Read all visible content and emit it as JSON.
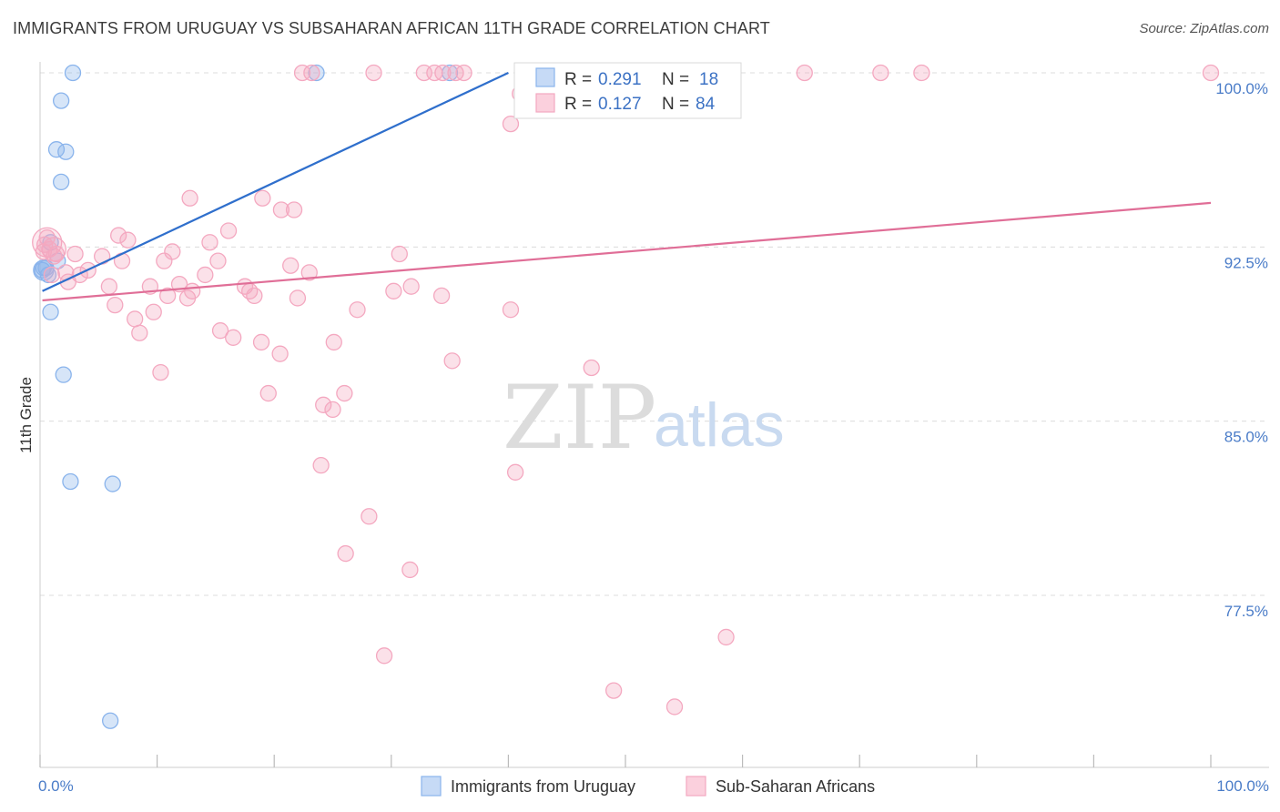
{
  "title": "IMMIGRANTS FROM URUGUAY VS SUBSAHARAN AFRICAN 11TH GRADE CORRELATION CHART",
  "source": "Source: ZipAtlas.com",
  "watermark": {
    "zip": "ZIP",
    "atlas": "atlas"
  },
  "chart_data": {
    "type": "scatter",
    "title": "IMMIGRANTS FROM URUGUAY VS SUBSAHARAN AFRICAN 11TH GRADE CORRELATION CHART",
    "xlabel": "",
    "ylabel": "11th Grade",
    "xlim": [
      0,
      100
    ],
    "ylim": [
      70.8,
      101.2
    ],
    "x_tick_labels": [
      "0.0%",
      "100.0%"
    ],
    "y_ticks": [
      77.5,
      85.0,
      92.5,
      100.0
    ],
    "y_tick_labels": [
      "77.5%",
      "85.0%",
      "92.5%",
      "100.0%"
    ],
    "grid": "horizontal dashed",
    "legend_position": "top-center",
    "series": [
      {
        "name": "Immigrants from Uruguay",
        "color": "#8ab4ec",
        "line_color": "#2f6fcc",
        "R": "0.291",
        "N": "18",
        "trend": [
          [
            0.2,
            90.6
          ],
          [
            40.0,
            100.0
          ]
        ],
        "points": [
          [
            2.8,
            100.0
          ],
          [
            1.8,
            98.8
          ],
          [
            1.4,
            96.7
          ],
          [
            2.2,
            96.6
          ],
          [
            1.8,
            95.3
          ],
          [
            0.9,
            92.7
          ],
          [
            0.3,
            91.6
          ],
          [
            0.7,
            91.3
          ],
          [
            1.5,
            91.9
          ],
          [
            0.9,
            89.7
          ],
          [
            2.0,
            87.0
          ],
          [
            2.6,
            82.4
          ],
          [
            6.2,
            82.3
          ],
          [
            6.0,
            72.1
          ],
          [
            23.6,
            100.0
          ],
          [
            35.0,
            100.0
          ],
          [
            0.5,
            91.6
          ],
          [
            0.2,
            91.5
          ]
        ]
      },
      {
        "name": "Sub-Saharan Africans",
        "color": "#f4a8c0",
        "line_color": "#e06e97",
        "R": "0.127",
        "N": "84",
        "trend": [
          [
            0.2,
            90.2
          ],
          [
            100.0,
            94.4
          ]
        ],
        "points": [
          [
            22.4,
            100.0
          ],
          [
            23.2,
            100.0
          ],
          [
            28.5,
            100.0
          ],
          [
            32.8,
            100.0
          ],
          [
            33.7,
            100.0
          ],
          [
            34.4,
            100.0
          ],
          [
            35.5,
            100.0
          ],
          [
            36.2,
            100.0
          ],
          [
            52.0,
            100.0
          ],
          [
            65.3,
            100.0
          ],
          [
            71.8,
            100.0
          ],
          [
            75.3,
            100.0
          ],
          [
            100.0,
            100.0
          ],
          [
            41.0,
            99.1
          ],
          [
            40.2,
            97.8
          ],
          [
            12.8,
            94.6
          ],
          [
            19.0,
            94.6
          ],
          [
            20.6,
            94.1
          ],
          [
            21.7,
            94.1
          ],
          [
            16.1,
            93.2
          ],
          [
            6.7,
            93.0
          ],
          [
            7.5,
            92.8
          ],
          [
            14.5,
            92.7
          ],
          [
            0.4,
            92.6
          ],
          [
            0.8,
            92.4
          ],
          [
            1.4,
            92.2
          ],
          [
            3.0,
            92.2
          ],
          [
            5.3,
            92.1
          ],
          [
            11.3,
            92.3
          ],
          [
            30.7,
            92.2
          ],
          [
            7.0,
            91.9
          ],
          [
            10.6,
            91.9
          ],
          [
            15.2,
            91.9
          ],
          [
            4.1,
            91.5
          ],
          [
            1.0,
            91.3
          ],
          [
            2.2,
            91.4
          ],
          [
            3.4,
            91.3
          ],
          [
            21.4,
            91.7
          ],
          [
            23.0,
            91.4
          ],
          [
            14.1,
            91.3
          ],
          [
            5.9,
            90.8
          ],
          [
            9.4,
            90.8
          ],
          [
            11.9,
            90.9
          ],
          [
            17.5,
            90.8
          ],
          [
            31.7,
            90.8
          ],
          [
            13.0,
            90.6
          ],
          [
            17.9,
            90.6
          ],
          [
            18.3,
            90.4
          ],
          [
            10.9,
            90.4
          ],
          [
            12.6,
            90.3
          ],
          [
            22.0,
            90.3
          ],
          [
            34.3,
            90.4
          ],
          [
            30.2,
            90.6
          ],
          [
            6.4,
            90.0
          ],
          [
            9.7,
            89.7
          ],
          [
            27.1,
            89.8
          ],
          [
            40.2,
            89.8
          ],
          [
            8.1,
            89.4
          ],
          [
            8.5,
            88.8
          ],
          [
            15.4,
            88.9
          ],
          [
            16.5,
            88.6
          ],
          [
            18.9,
            88.4
          ],
          [
            25.1,
            88.4
          ],
          [
            20.5,
            87.9
          ],
          [
            35.2,
            87.6
          ],
          [
            47.1,
            87.3
          ],
          [
            10.3,
            87.1
          ],
          [
            19.5,
            86.2
          ],
          [
            26.0,
            86.2
          ],
          [
            24.2,
            85.7
          ],
          [
            25.0,
            85.5
          ],
          [
            24.0,
            83.1
          ],
          [
            40.6,
            82.8
          ],
          [
            28.1,
            80.9
          ],
          [
            26.1,
            79.3
          ],
          [
            31.6,
            78.6
          ],
          [
            58.6,
            75.7
          ],
          [
            29.4,
            74.9
          ],
          [
            49.0,
            73.4
          ],
          [
            54.2,
            72.7
          ],
          [
            1.2,
            92.1
          ],
          [
            2.4,
            91.0
          ],
          [
            0.6,
            92.9
          ],
          [
            0.3,
            92.3
          ]
        ]
      }
    ]
  },
  "legend": {
    "r_label": "R =",
    "n_label": "N =",
    "rows": [
      {
        "r": "0.291",
        "n": "18"
      },
      {
        "r": "0.127",
        "n": "84"
      }
    ]
  },
  "bottom_legend": [
    "Immigrants from Uruguay",
    "Sub-Saharan Africans"
  ]
}
